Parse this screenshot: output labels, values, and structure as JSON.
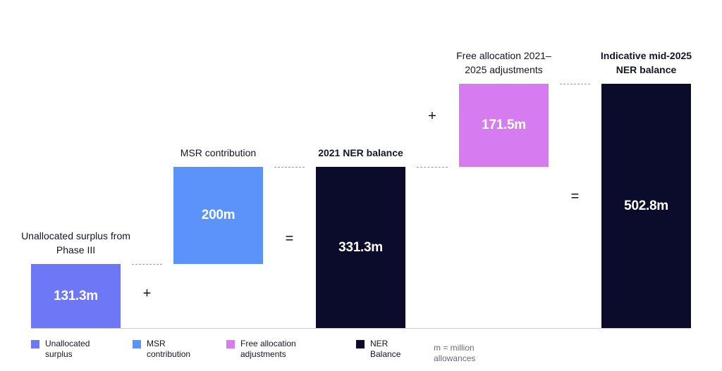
{
  "chart_data": {
    "type": "waterfall",
    "unit": "m",
    "bars": [
      {
        "label": "Unallocated surplus from Phase III",
        "value": 131.3,
        "base": 0,
        "display": "131.3m",
        "color": "#6e78f7",
        "bold_label": false
      },
      {
        "label": "MSR contribution",
        "value": 200,
        "base": 131.3,
        "display": "200m",
        "color": "#5b93fb",
        "bold_label": false
      },
      {
        "label": "2021 NER balance",
        "value": 331.3,
        "base": 0,
        "display": "331.3m",
        "color": "#0b0b2b",
        "bold_label": true
      },
      {
        "label": "Free allocation 2021–2025 adjustments",
        "value": 171.5,
        "base": 331.3,
        "display": "171.5m",
        "color": "#d77cf0",
        "bold_label": false
      },
      {
        "label": "Indicative mid-2025 NER balance",
        "value": 502.8,
        "base": 0,
        "display": "502.8m",
        "color": "#0b0b2b",
        "bold_label": true
      }
    ],
    "operators": [
      "+",
      "=",
      "+",
      "="
    ],
    "legend": [
      {
        "label": "Unallocated surplus",
        "color": "#6e78f7"
      },
      {
        "label": "MSR contribution",
        "color": "#5b93fb"
      },
      {
        "label": "Free allocation adjustments",
        "color": "#d77cf0"
      },
      {
        "label": "NER Balance",
        "color": "#0b0b2b"
      }
    ],
    "note": "m = million allowances"
  }
}
